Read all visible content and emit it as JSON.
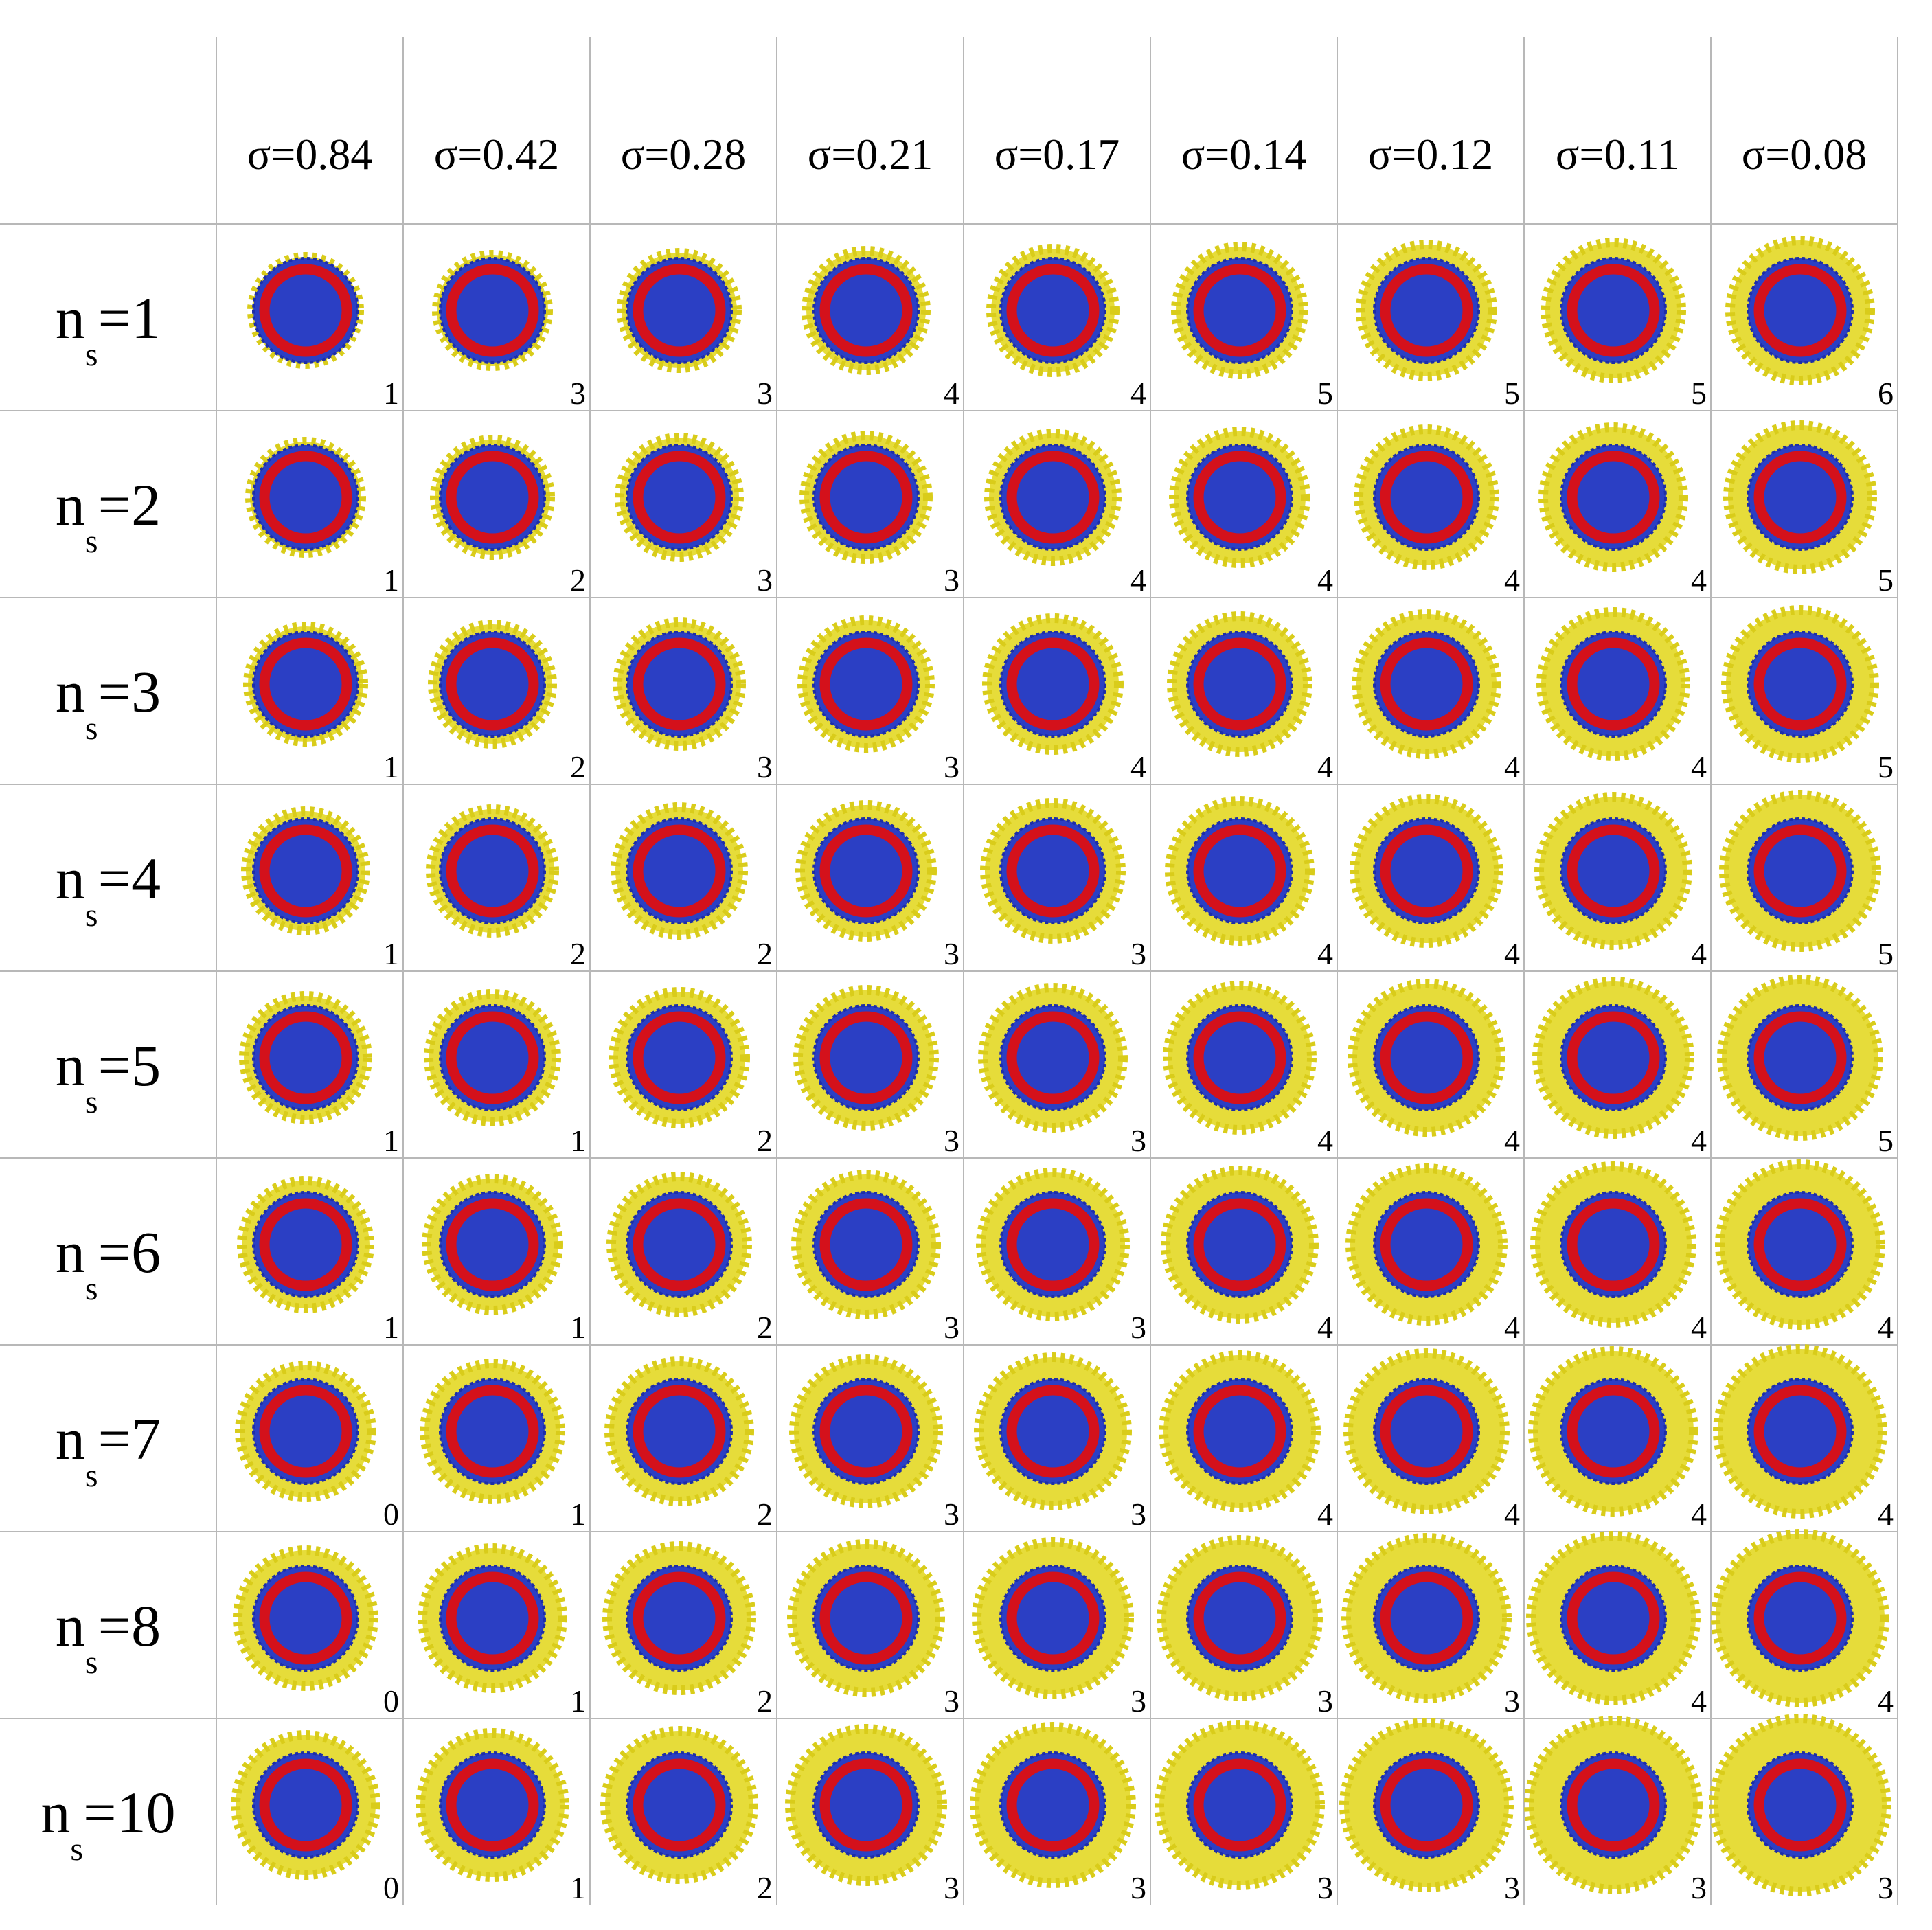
{
  "columns": [
    "σ=0.84",
    "σ=0.42",
    "σ=0.28",
    "σ=0.21",
    "σ=0.17",
    "σ=0.14",
    "σ=0.12",
    "σ=0.11",
    "σ=0.08"
  ],
  "rows": [
    {
      "n": "n",
      "sub": "s",
      "eq": "=1"
    },
    {
      "n": "n",
      "sub": "s",
      "eq": "=2"
    },
    {
      "n": "n",
      "sub": "s",
      "eq": "=3"
    },
    {
      "n": "n",
      "sub": "s",
      "eq": "=4"
    },
    {
      "n": "n",
      "sub": "s",
      "eq": "=5"
    },
    {
      "n": "n",
      "sub": "s",
      "eq": "=6"
    },
    {
      "n": "n",
      "sub": "s",
      "eq": "=7"
    },
    {
      "n": "n",
      "sub": "s",
      "eq": "=8"
    },
    {
      "n": "n",
      "sub": "s",
      "eq": "=10"
    }
  ],
  "cells": [
    [
      1,
      3,
      3,
      4,
      4,
      5,
      5,
      5,
      6
    ],
    [
      1,
      2,
      3,
      3,
      4,
      4,
      4,
      4,
      5
    ],
    [
      1,
      2,
      3,
      3,
      4,
      4,
      4,
      4,
      5
    ],
    [
      1,
      2,
      2,
      3,
      3,
      4,
      4,
      4,
      5
    ],
    [
      1,
      1,
      2,
      3,
      3,
      4,
      4,
      4,
      5
    ],
    [
      1,
      1,
      2,
      3,
      3,
      4,
      4,
      4,
      4
    ],
    [
      0,
      1,
      2,
      3,
      3,
      4,
      4,
      4,
      4
    ],
    [
      0,
      1,
      2,
      3,
      3,
      3,
      3,
      4,
      4
    ],
    [
      0,
      1,
      2,
      3,
      3,
      3,
      3,
      3,
      3
    ]
  ]
}
